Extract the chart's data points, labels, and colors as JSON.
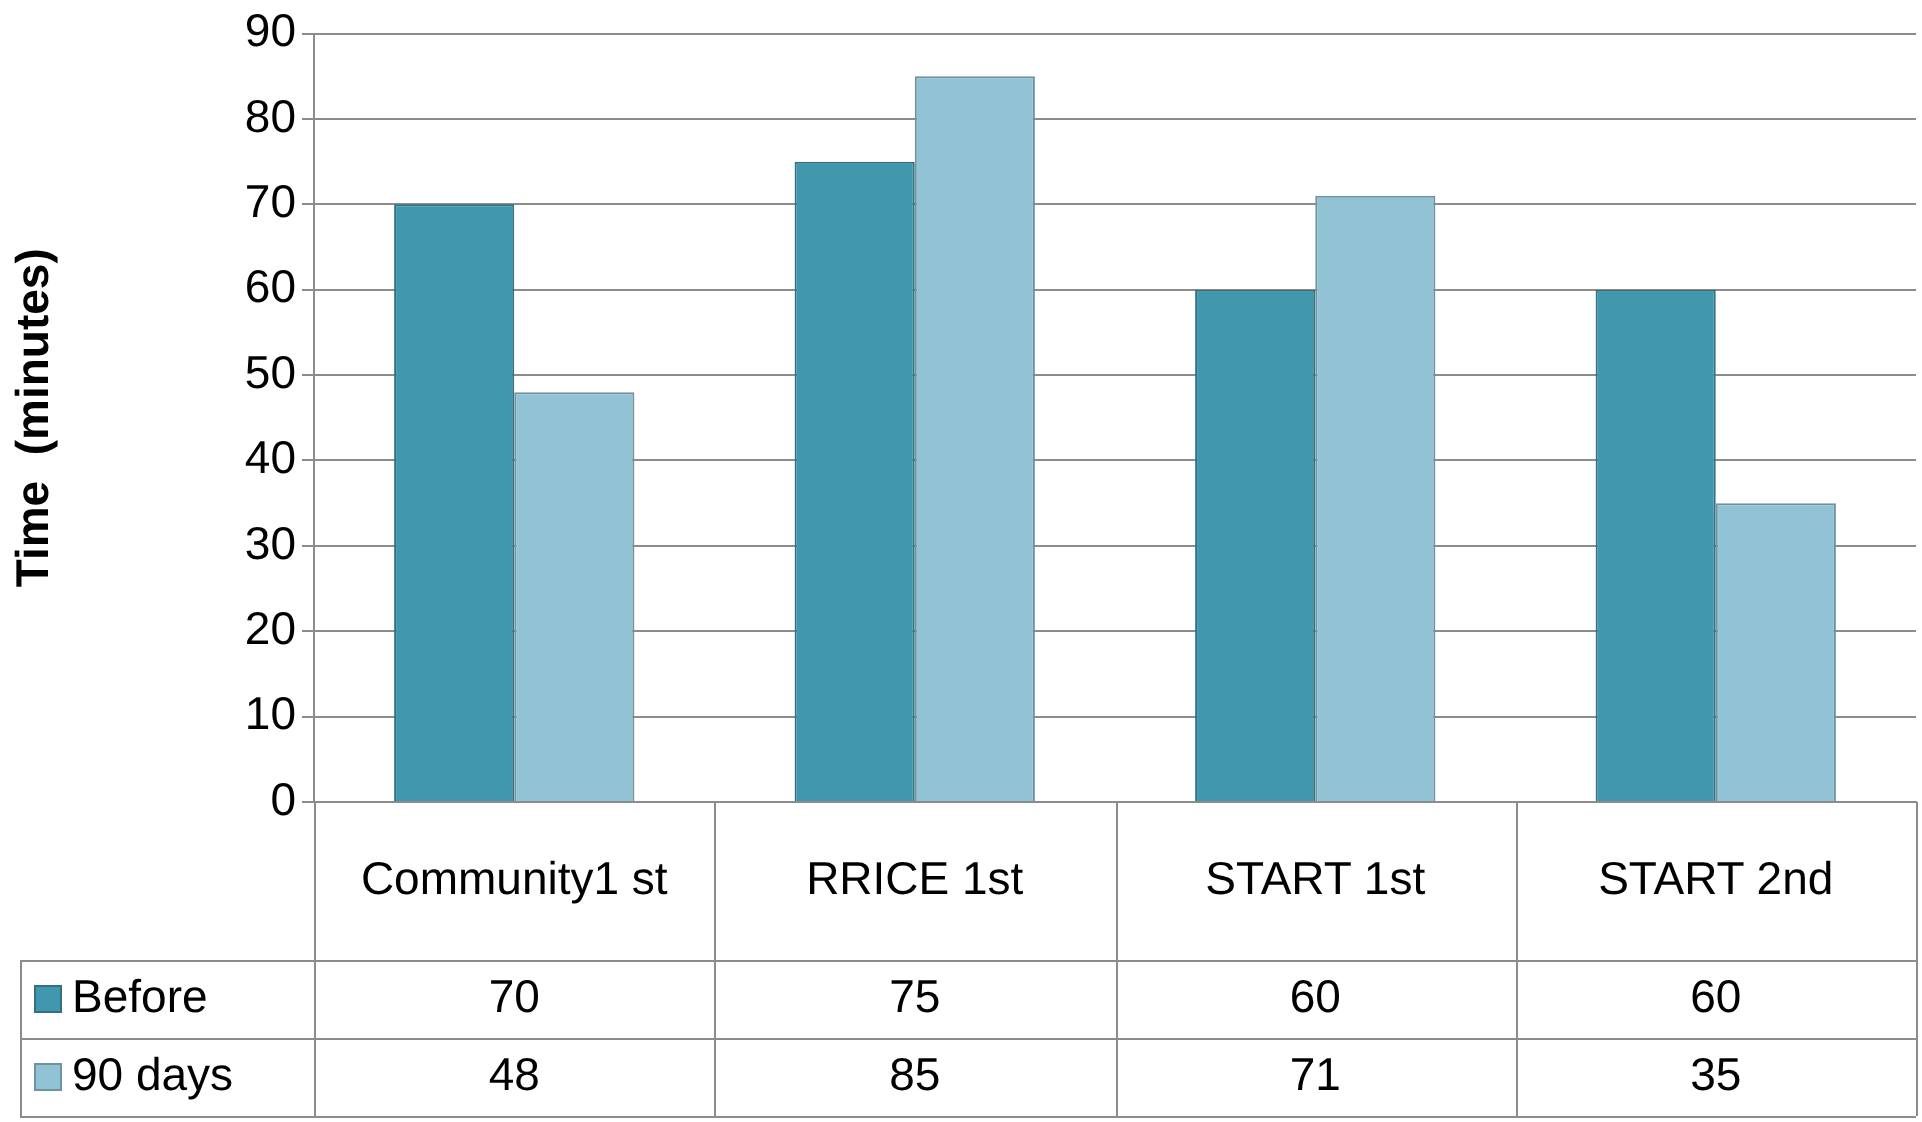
{
  "chart_data": {
    "type": "bar",
    "ylabel": "Time  (minutes)",
    "categories": [
      "Community1 st",
      "RRICE 1st",
      "START 1st",
      "START 2nd"
    ],
    "series": [
      {
        "name": "Before",
        "color": "#4197ad",
        "values": [
          70,
          75,
          60,
          60
        ]
      },
      {
        "name": "90 days",
        "color": "#92c3d5",
        "values": [
          48,
          85,
          71,
          35
        ]
      }
    ],
    "ylim": [
      0,
      90
    ],
    "yticks": [
      0,
      10,
      20,
      30,
      40,
      50,
      60,
      70,
      80,
      90
    ],
    "grid": "y",
    "legend": "bottom",
    "data_labels": true
  }
}
